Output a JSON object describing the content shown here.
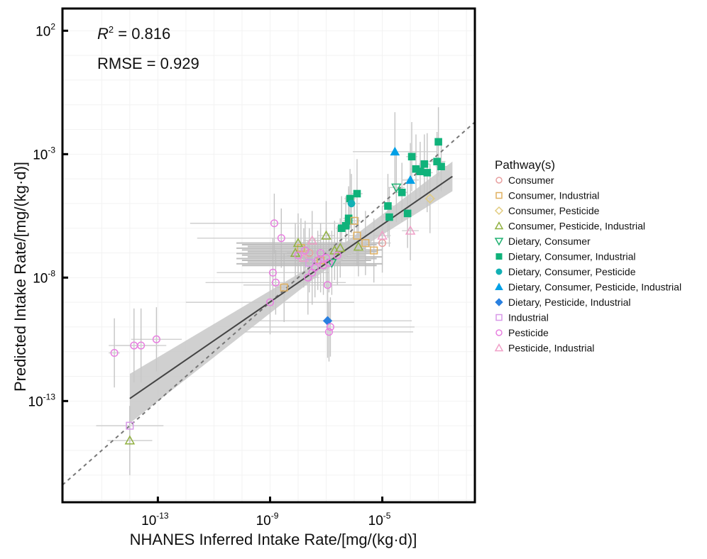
{
  "chart_data": {
    "type": "scatter",
    "xscale": "log",
    "yscale": "log",
    "xlabel": "NHANES Inferred Intake Rate/[mg/(kg·d)]",
    "ylabel": "Predicted Intake Rate/[mg/(kg·d)]",
    "xlim_log10": [
      -16.4,
      -1.7
    ],
    "ylim_log10": [
      -17.1,
      2.9
    ],
    "xticks": [
      {
        "exp": -13,
        "label": "10",
        "sup": "-13"
      },
      {
        "exp": -9,
        "label": "10",
        "sup": "-9"
      },
      {
        "exp": -5,
        "label": "10",
        "sup": "-5"
      }
    ],
    "yticks": [
      {
        "exp": 2,
        "label": "10",
        "sup": "2"
      },
      {
        "exp": -3,
        "label": "10",
        "sup": "-3"
      },
      {
        "exp": -8,
        "label": "10",
        "sup": "-8"
      },
      {
        "exp": -13,
        "label": "10",
        "sup": "-13"
      }
    ],
    "grid": true,
    "annotations": {
      "r2_label": "R",
      "r2_sup": "2",
      "r2_value": " = 0.816",
      "rmse": "RMSE = 0.929"
    },
    "identity_line": {
      "style": "dashed",
      "color": "#777777"
    },
    "fit_line": {
      "x_log10": [
        -14.0,
        -2.5
      ],
      "y_log10": [
        -12.9,
        -3.9
      ],
      "ci_halfwidth_log10_ends": [
        1.0,
        0.6
      ],
      "ci_halfwidth_log10_mid": 0.25,
      "color": "#444444",
      "band_color": "#c8c8c8"
    },
    "legend": {
      "title": "Pathway(s)",
      "position": "right",
      "entries": [
        {
          "key": "C",
          "label": "Consumer",
          "shape": "circle",
          "filled": false,
          "color": "#e8a0a0"
        },
        {
          "key": "CI",
          "label": "Consumer, Industrial",
          "shape": "square",
          "filled": false,
          "color": "#e0b060"
        },
        {
          "key": "CP",
          "label": "Consumer, Pesticide",
          "shape": "diamond",
          "filled": false,
          "color": "#e2cc80"
        },
        {
          "key": "CPI",
          "label": "Consumer, Pesticide, Industrial",
          "shape": "triangle",
          "filled": false,
          "color": "#90b040"
        },
        {
          "key": "DC",
          "label": "Dietary, Consumer",
          "shape": "triangle-down",
          "filled": false,
          "color": "#1fb070"
        },
        {
          "key": "DCI",
          "label": "Dietary, Consumer, Industrial",
          "shape": "square",
          "filled": true,
          "color": "#10b27a"
        },
        {
          "key": "DCP",
          "label": "Dietary, Consumer, Pesticide",
          "shape": "circle",
          "filled": true,
          "color": "#12b0b4"
        },
        {
          "key": "DCPI",
          "label": "Dietary, Consumer, Pesticide, Industrial",
          "shape": "triangle",
          "filled": true,
          "color": "#00a0e6"
        },
        {
          "key": "DPI",
          "label": "Dietary, Pesticide, Industrial",
          "shape": "diamond",
          "filled": true,
          "color": "#2a80e0"
        },
        {
          "key": "I",
          "label": "Industrial",
          "shape": "square",
          "filled": false,
          "color": "#d898e8"
        },
        {
          "key": "P",
          "label": "Pesticide",
          "shape": "circle",
          "filled": false,
          "color": "#e880e0"
        },
        {
          "key": "PI",
          "label": "Pesticide, Industrial",
          "shape": "triangle",
          "filled": false,
          "color": "#f0a0c8"
        }
      ]
    },
    "points": [
      {
        "g": "DCI",
        "x": -3.0,
        "y": -2.5,
        "xe": 0.0,
        "ye": 1.4
      },
      {
        "g": "DCI",
        "x": -3.05,
        "y": -3.3,
        "xe": 0.3,
        "ye": 1.2
      },
      {
        "g": "DCI",
        "x": -2.9,
        "y": -3.5,
        "xe": 0.2,
        "ye": 1.0
      },
      {
        "g": "DCI",
        "x": -3.5,
        "y": -3.4,
        "xe": 0.2,
        "ye": 1.2
      },
      {
        "g": "DCI",
        "x": -3.95,
        "y": -3.1,
        "xe": 0.2,
        "ye": 1.4
      },
      {
        "g": "DCI",
        "x": -3.8,
        "y": -3.6,
        "xe": 0.2,
        "ye": 1.4
      },
      {
        "g": "DCI",
        "x": -3.65,
        "y": -3.7,
        "xe": 0.2,
        "ye": 1.2
      },
      {
        "g": "DCI",
        "x": -3.4,
        "y": -3.75,
        "xe": 0.2,
        "ye": 1.6
      },
      {
        "g": "DCI",
        "x": -4.3,
        "y": -4.55,
        "xe": 0.2,
        "ye": 1.2
      },
      {
        "g": "DCI",
        "x": -4.8,
        "y": -5.1,
        "xe": 0.2,
        "ye": 1.3
      },
      {
        "g": "DCI",
        "x": -4.75,
        "y": -5.55,
        "xe": 0.3,
        "ye": 1.2
      },
      {
        "g": "DCI",
        "x": -4.1,
        "y": -5.4,
        "xe": 0.2,
        "ye": 1.4
      },
      {
        "g": "DCI",
        "x": -6.15,
        "y": -4.8,
        "xe": 0.2,
        "ye": 1.2
      },
      {
        "g": "DCI",
        "x": -5.9,
        "y": -4.6,
        "xe": 0.2,
        "ye": 1.4
      },
      {
        "g": "DCI",
        "x": -6.2,
        "y": -5.6,
        "xe": 0.2,
        "ye": 1.3
      },
      {
        "g": "DCI",
        "x": -6.3,
        "y": -5.9,
        "xe": 0.2,
        "ye": 1.2
      },
      {
        "g": "DCI",
        "x": -6.45,
        "y": -6.0,
        "xe": 0.2,
        "ye": 1.3
      },
      {
        "g": "DCI",
        "x": -6.2,
        "y": -5.7,
        "xe": 0.2,
        "ye": 1.3
      },
      {
        "g": "DCPI",
        "x": -4.55,
        "y": -2.9,
        "xe": 1.5,
        "ye": 1.6
      },
      {
        "g": "DCPI",
        "x": -4.0,
        "y": -4.05,
        "xe": 0.3,
        "ye": 1.5
      },
      {
        "g": "DCP",
        "x": -6.1,
        "y": -5.0,
        "xe": 0.3,
        "ye": 1.2
      },
      {
        "g": "DPI",
        "x": -6.95,
        "y": -9.75,
        "xe": 3.0,
        "ye": 1.5
      },
      {
        "g": "DC",
        "x": -4.5,
        "y": -4.35,
        "xe": 0.3,
        "ye": 1.4
      },
      {
        "g": "DC",
        "x": -6.8,
        "y": -7.4,
        "xe": 0.3,
        "ye": 1.3
      },
      {
        "g": "CP",
        "x": -3.3,
        "y": -4.8,
        "xe": 0.2,
        "ye": 1.4
      },
      {
        "g": "CI",
        "x": -5.6,
        "y": -6.6,
        "xe": 0.3,
        "ye": 1.3
      },
      {
        "g": "CI",
        "x": -5.9,
        "y": -6.3,
        "xe": 0.3,
        "ye": 1.2
      },
      {
        "g": "CI",
        "x": -6.0,
        "y": -5.7,
        "xe": 0.2,
        "ye": 1.2
      },
      {
        "g": "CI",
        "x": -5.3,
        "y": -6.9,
        "xe": 0.2,
        "ye": 1.3
      },
      {
        "g": "CI",
        "x": -7.2,
        "y": -7.3,
        "xe": 0.3,
        "ye": 1.3
      },
      {
        "g": "CI",
        "x": -8.5,
        "y": -8.4,
        "xe": 0.3,
        "ye": 1.4
      },
      {
        "g": "CI",
        "x": -7.9,
        "y": -6.8,
        "xe": 0.3,
        "ye": 1.2
      },
      {
        "g": "C",
        "x": -5.0,
        "y": -6.6,
        "xe": 0.3,
        "ye": 1.2
      },
      {
        "g": "C",
        "x": -7.6,
        "y": -7.0,
        "xe": 0.3,
        "ye": 1.0
      },
      {
        "g": "CPI",
        "x": -7.0,
        "y": -6.3,
        "xe": 0.3,
        "ye": 1.4
      },
      {
        "g": "CPI",
        "x": -8.1,
        "y": -7.0,
        "xe": 0.3,
        "ye": 1.2
      },
      {
        "g": "CPI",
        "x": -6.5,
        "y": -6.8,
        "xe": 0.3,
        "ye": 1.2
      },
      {
        "g": "CPI",
        "x": -6.7,
        "y": -6.9,
        "xe": 0.3,
        "ye": 1.2
      },
      {
        "g": "CPI",
        "x": -5.85,
        "y": -6.75,
        "xe": 0.3,
        "ye": 1.2
      },
      {
        "g": "CPI",
        "x": -8.0,
        "y": -6.6,
        "xe": 0.3,
        "ye": 1.2
      },
      {
        "g": "CPI",
        "x": -14.0,
        "y": -14.6,
        "xe": 0.8,
        "ye": 1.4
      },
      {
        "g": "PI",
        "x": -5.0,
        "y": -6.3,
        "xe": 0.3,
        "ye": 1.2
      },
      {
        "g": "PI",
        "x": -4.0,
        "y": -6.1,
        "xe": 0.3,
        "ye": 1.2
      },
      {
        "g": "PI",
        "x": -7.5,
        "y": -6.5,
        "xe": 0.3,
        "ye": 1.2
      },
      {
        "g": "PI",
        "x": -7.8,
        "y": -7.2,
        "xe": 0.3,
        "ye": 1.2
      },
      {
        "g": "I",
        "x": -14.0,
        "y": -14.0,
        "xe": 1.2,
        "ye": 0.8
      },
      {
        "g": "I",
        "x": -7.6,
        "y": -7.4,
        "xe": 0.3,
        "ye": 1.2
      },
      {
        "g": "P",
        "x": -13.05,
        "y": -10.5,
        "xe": 0.9,
        "ye": 1.3
      },
      {
        "g": "P",
        "x": -13.6,
        "y": -10.75,
        "xe": 0.9,
        "ye": 1.5
      },
      {
        "g": "P",
        "x": -13.85,
        "y": -10.75,
        "xe": 0.9,
        "ye": 1.5
      },
      {
        "g": "P",
        "x": -14.55,
        "y": -11.05,
        "xe": 0.2,
        "ye": 1.4
      },
      {
        "g": "P",
        "x": -8.85,
        "y": -5.8,
        "xe": 3.0,
        "ye": 1.2
      },
      {
        "g": "P",
        "x": -8.6,
        "y": -6.4,
        "xe": 3.0,
        "ye": 1.2
      },
      {
        "g": "P",
        "x": -8.9,
        "y": -7.8,
        "xe": 2.0,
        "ye": 1.4
      },
      {
        "g": "P",
        "x": -9.0,
        "y": -9.0,
        "xe": 3.0,
        "ye": 1.3
      },
      {
        "g": "P",
        "x": -8.8,
        "y": -8.2,
        "xe": 2.5,
        "ye": 1.3
      },
      {
        "g": "P",
        "x": -7.65,
        "y": -8.0,
        "xe": 0.4,
        "ye": 1.5
      },
      {
        "g": "P",
        "x": -6.95,
        "y": -8.3,
        "xe": 3.0,
        "ye": 1.3
      },
      {
        "g": "P",
        "x": -7.5,
        "y": -7.8,
        "xe": 0.4,
        "ye": 1.3
      },
      {
        "g": "P",
        "x": -7.1,
        "y": -7.5,
        "xe": 0.4,
        "ye": 1.2
      },
      {
        "g": "P",
        "x": -7.3,
        "y": -7.3,
        "xe": 0.4,
        "ye": 1.2
      },
      {
        "g": "P",
        "x": -7.0,
        "y": -7.2,
        "xe": 0.4,
        "ye": 1.2
      },
      {
        "g": "P",
        "x": -7.2,
        "y": -7.0,
        "xe": 0.4,
        "ye": 1.2
      },
      {
        "g": "P",
        "x": -7.4,
        "y": -7.6,
        "xe": 0.4,
        "ye": 1.2
      },
      {
        "g": "P",
        "x": -6.9,
        "y": -7.4,
        "xe": 0.4,
        "ye": 1.2
      },
      {
        "g": "P",
        "x": -6.85,
        "y": -10.0,
        "xe": 3.0,
        "ye": 1.2
      },
      {
        "g": "P",
        "x": -6.9,
        "y": -10.2,
        "xe": 3.0,
        "ye": 1.2
      },
      {
        "g": "P",
        "x": -8.0,
        "y": -7.1,
        "xe": 0.4,
        "ye": 1.2
      },
      {
        "g": "P",
        "x": -7.75,
        "y": -6.9,
        "xe": 0.4,
        "ye": 1.2
      },
      {
        "g": "P",
        "x": -6.6,
        "y": -7.1,
        "xe": 0.3,
        "ye": 1.2
      }
    ]
  }
}
